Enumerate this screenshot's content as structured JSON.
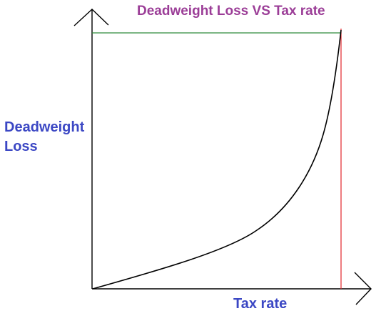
{
  "title": "Deadweight Loss VS Tax rate",
  "ylabel": [
    "Deadweight",
    "Loss"
  ],
  "xlabel": "Tax rate",
  "colors": {
    "title": "#9b3d97",
    "axis_labels": "#3b47c4",
    "axes": "#000000",
    "curve": "#000000",
    "horizontal_line": "#2e8b3a",
    "vertical_line": "#e3262b"
  },
  "icons": {
    "y_axis_arrow": "arrow-up-icon",
    "x_axis_arrow": "arrow-right-icon"
  }
}
